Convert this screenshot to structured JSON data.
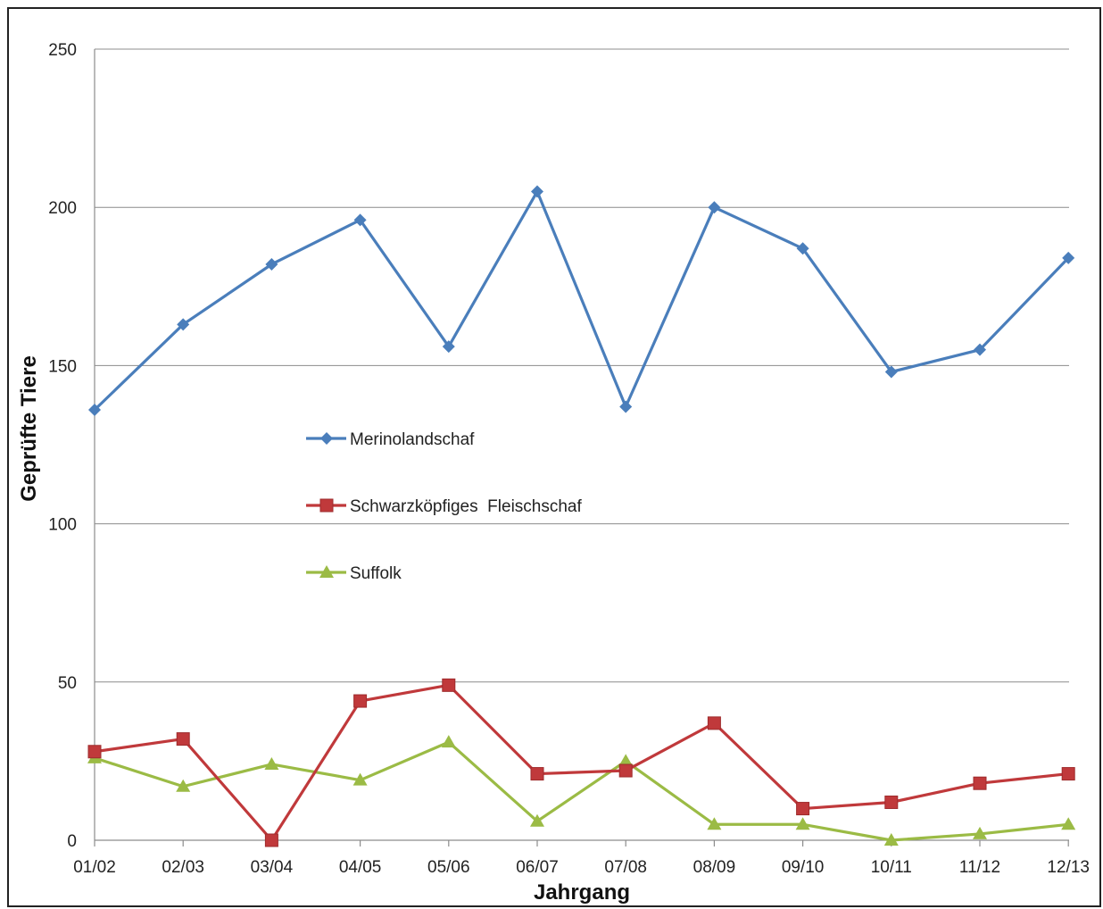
{
  "chart_data": {
    "type": "line",
    "xlabel": "Jahrgang",
    "ylabel": "Geprüfte Tiere",
    "ylim": [
      0,
      250
    ],
    "yticks": [
      0,
      50,
      100,
      150,
      200,
      250
    ],
    "grid": true,
    "legend_position": "center-left",
    "categories": [
      "01/02",
      "02/03",
      "03/04",
      "04/05",
      "05/06",
      "06/07",
      "07/08",
      "08/09",
      "09/10",
      "10/11",
      "11/12",
      "12/13"
    ],
    "series": [
      {
        "name": "Merinolandschaf",
        "color": "#4a7ebb",
        "marker": "diamond",
        "values": [
          136,
          163,
          182,
          196,
          156,
          205,
          137,
          200,
          187,
          148,
          155,
          184
        ]
      },
      {
        "name": "Schwarzköpfiges  Fleischschaf",
        "color": "#c0393b",
        "marker": "square",
        "values": [
          28,
          32,
          0,
          44,
          49,
          21,
          22,
          37,
          10,
          12,
          18,
          21
        ]
      },
      {
        "name": "Suffolk",
        "color": "#9bbb45",
        "marker": "triangle",
        "values": [
          26,
          17,
          24,
          19,
          31,
          6,
          25,
          5,
          5,
          0,
          2,
          5
        ]
      }
    ]
  }
}
